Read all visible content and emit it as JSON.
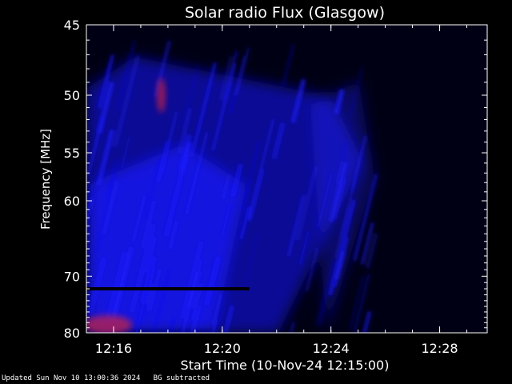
{
  "chart_data": {
    "type": "heatmap",
    "title": "Solar radio Flux (Glasgow)",
    "xlabel": "Start Time (10-Nov-24 12:15:00)",
    "ylabel": "Frequency [MHz]",
    "x_unit": "minutes",
    "x_range": [
      "12:15:00",
      "12:29:45"
    ],
    "y_range": [
      45,
      80
    ],
    "y_scale": "reciprocal",
    "y_axis_direction": "increasing-downward",
    "x_ticks": [
      "12:16",
      "12:20",
      "12:24",
      "12:28"
    ],
    "y_ticks": [
      45,
      50,
      55,
      60,
      70,
      80
    ],
    "colors": {
      "background": "#000000",
      "low_intensity": "#000020",
      "mid_intensity": "#1a1aff",
      "high_intensity": "#c0204a",
      "axes": "#ffffff"
    },
    "features": [
      {
        "label": "diffuse emission band",
        "start_time": "12:15",
        "end_time": "12:24",
        "freq_high": 80,
        "freq_low": 45
      },
      {
        "label": "bright red patch",
        "time": "12:17:45",
        "freq": 50
      },
      {
        "label": "bright red patch",
        "time": "12:15:30",
        "freq": 80
      },
      {
        "label": "dark horizontal line",
        "start_time": "12:15",
        "end_time": "12:21",
        "freq": 72
      }
    ]
  },
  "footer": {
    "updated": "Updated Sun Nov 10 13:00:36 2024",
    "note": "BG subtracted"
  }
}
